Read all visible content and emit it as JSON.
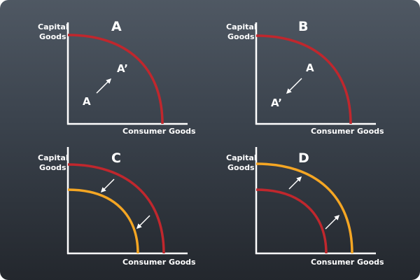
{
  "colors": {
    "original_curve": "#c0272d",
    "new_curve": "#f5a623",
    "axis": "#ffffff",
    "arrow": "#ffffff"
  },
  "labels": {
    "y_axis_line1": "Capital",
    "y_axis_line2": "Goods",
    "x_axis": "Consumer Goods"
  },
  "panels": [
    {
      "letter": "A",
      "curves": [
        "original"
      ],
      "point_start": "A",
      "point_end": "A’",
      "movement": "outward-along-curve"
    },
    {
      "letter": "B",
      "curves": [
        "original"
      ],
      "point_start": "A",
      "point_end": "A’",
      "movement": "inward-from-curve"
    },
    {
      "letter": "C",
      "curves": [
        "original",
        "new-inner"
      ],
      "shift": "inward"
    },
    {
      "letter": "D",
      "curves": [
        "original",
        "new-outer"
      ],
      "shift": "outward"
    }
  ]
}
